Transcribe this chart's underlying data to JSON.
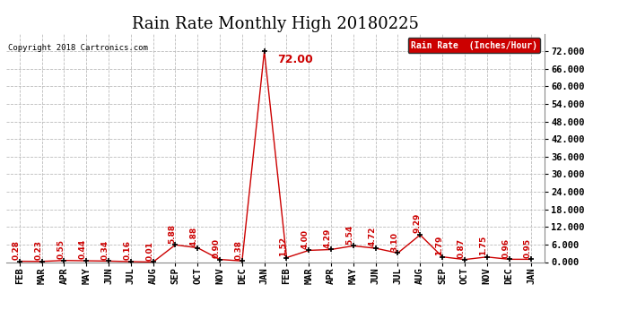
{
  "title": "Rain Rate Monthly High 20180225",
  "copyright": "Copyright 2018 Cartronics.com",
  "legend_label": "Rain Rate  (Inches/Hour)",
  "x_labels": [
    "FEB",
    "MAR",
    "APR",
    "MAY",
    "JUN",
    "JUL",
    "AUG",
    "SEP",
    "OCT",
    "NOV",
    "DEC",
    "JAN",
    "FEB",
    "MAR",
    "APR",
    "MAY",
    "JUN",
    "JUL",
    "AUG",
    "SEP",
    "OCT",
    "NOV",
    "DEC",
    "JAN"
  ],
  "y_values": [
    0.28,
    0.23,
    0.55,
    0.44,
    0.34,
    0.16,
    0.01,
    5.88,
    4.88,
    0.9,
    0.38,
    72.0,
    1.52,
    4.0,
    4.29,
    5.54,
    4.72,
    3.1,
    9.29,
    1.79,
    0.87,
    1.75,
    0.96,
    0.95
  ],
  "peak_index": 11,
  "peak_label": "72.00",
  "ylim": [
    0,
    78
  ],
  "ytick_values": [
    0.0,
    6.0,
    12.0,
    18.0,
    24.0,
    30.0,
    36.0,
    42.0,
    48.0,
    54.0,
    60.0,
    66.0,
    72.0
  ],
  "line_color": "#cc0000",
  "marker_color": "#000000",
  "background_color": "#ffffff",
  "grid_color": "#bbbbbb",
  "title_fontsize": 13,
  "annotation_fontsize": 6.5,
  "peak_fontsize": 9,
  "legend_bg": "#cc0000",
  "legend_text_color": "#ffffff",
  "tick_fontsize": 7.5
}
